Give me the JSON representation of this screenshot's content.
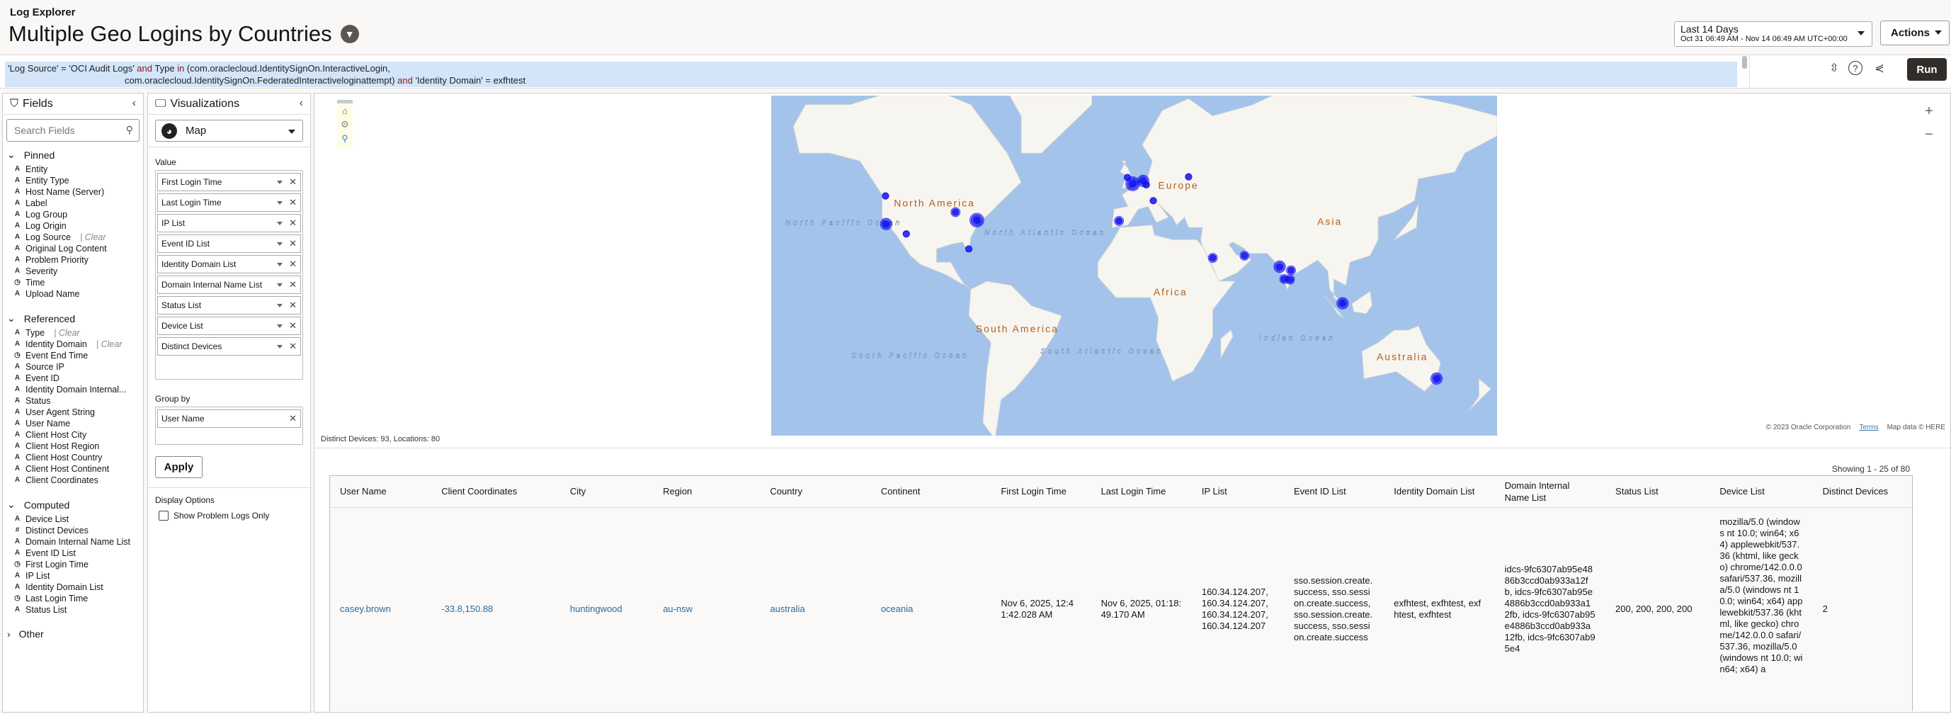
{
  "header": {
    "app_name": "Log Explorer",
    "title": "Multiple Geo Logins by Countries",
    "filter_icon": "filter-icon",
    "time_range": {
      "label": "Last 14 Days",
      "range": "Oct 31 06:49 AM - Nov 14 06:49 AM UTC+00:00"
    },
    "actions_label": "Actions"
  },
  "query": {
    "parts": [
      {
        "t": "'Log Source' = 'OCI Audit Logs' ",
        "kw": false
      },
      {
        "t": "and",
        "kw": true
      },
      {
        "t": " Type ",
        "kw": false
      },
      {
        "t": "in",
        "kw": true
      },
      {
        "t": " (com.oraclecloud.IdentitySignOn.InteractiveLogin,",
        "kw": false
      }
    ],
    "parts2": [
      {
        "t": "com.oraclecloud.IdentitySignOn.FederatedInteractiveloginattempt) ",
        "kw": false
      },
      {
        "t": "and",
        "kw": true
      },
      {
        "t": " 'Identity Domain' = exfhtest",
        "kw": false
      }
    ],
    "run_label": "Run"
  },
  "fields": {
    "title": "Fields",
    "search_placeholder": "Search Fields",
    "clear": "| Clear",
    "groups": [
      {
        "name": "Pinned",
        "items": [
          {
            "t": "A",
            "n": "Entity"
          },
          {
            "t": "A",
            "n": "Entity Type"
          },
          {
            "t": "A",
            "n": "Host Name (Server)"
          },
          {
            "t": "A",
            "n": "Label"
          },
          {
            "t": "A",
            "n": "Log Group"
          },
          {
            "t": "A",
            "n": "Log Origin"
          },
          {
            "t": "A",
            "n": "Log Source",
            "clear": true
          },
          {
            "t": "A",
            "n": "Original Log Content"
          },
          {
            "t": "A",
            "n": "Problem Priority"
          },
          {
            "t": "A",
            "n": "Severity"
          },
          {
            "t": "◷",
            "n": "Time"
          },
          {
            "t": "A",
            "n": "Upload Name"
          }
        ]
      },
      {
        "name": "Referenced",
        "items": [
          {
            "t": "A",
            "n": "Type",
            "clear": true
          },
          {
            "t": "A",
            "n": "Identity Domain",
            "clear": true
          },
          {
            "t": "◷",
            "n": "Event End Time"
          },
          {
            "t": "A",
            "n": "Source IP"
          },
          {
            "t": "A",
            "n": "Event ID"
          },
          {
            "t": "A",
            "n": "Identity Domain Internal..."
          },
          {
            "t": "A",
            "n": "Status"
          },
          {
            "t": "A",
            "n": "User Agent String"
          },
          {
            "t": "A",
            "n": "User Name"
          },
          {
            "t": "A",
            "n": "Client Host City"
          },
          {
            "t": "A",
            "n": "Client Host Region"
          },
          {
            "t": "A",
            "n": "Client Host Country"
          },
          {
            "t": "A",
            "n": "Client Host Continent"
          },
          {
            "t": "A",
            "n": "Client Coordinates"
          }
        ]
      },
      {
        "name": "Computed",
        "items": [
          {
            "t": "A",
            "n": "Device List"
          },
          {
            "t": "#",
            "n": "Distinct Devices"
          },
          {
            "t": "A",
            "n": "Domain Internal Name List"
          },
          {
            "t": "A",
            "n": "Event ID List"
          },
          {
            "t": "◷",
            "n": "First Login Time"
          },
          {
            "t": "A",
            "n": "IP List"
          },
          {
            "t": "A",
            "n": "Identity Domain List"
          },
          {
            "t": "◷",
            "n": "Last Login Time"
          },
          {
            "t": "A",
            "n": "Status List"
          }
        ]
      },
      {
        "name": "Other",
        "collapsed": true,
        "items": []
      }
    ]
  },
  "viz": {
    "title": "Visualizations",
    "type": "Map",
    "value_label": "Value",
    "values": [
      "First Login Time",
      "Last Login Time",
      "IP List",
      "Event ID List",
      "Identity Domain List",
      "Domain Internal Name List",
      "Status List",
      "Device List",
      "Distinct Devices"
    ],
    "group_by_label": "Group by",
    "group_by": [
      "User Name"
    ],
    "apply_label": "Apply",
    "display_options_label": "Display Options",
    "show_problem_logs": {
      "label": "Show Problem Logs Only",
      "checked": false
    }
  },
  "map": {
    "labels": [
      {
        "text": "North America",
        "kind": "continent",
        "lat": 44,
        "lon": -98
      },
      {
        "text": "Europe",
        "kind": "continent",
        "lat": 50,
        "lon": 23
      },
      {
        "text": "Asia",
        "kind": "continent",
        "lat": 37,
        "lon": 98
      },
      {
        "text": "Africa",
        "kind": "continent",
        "lat": 5,
        "lon": 19
      },
      {
        "text": "South America",
        "kind": "continent",
        "lat": -13,
        "lon": -57
      },
      {
        "text": "Australia",
        "kind": "continent",
        "lat": -26,
        "lon": 134
      },
      {
        "text": "North Pacific Ocean",
        "kind": "ocean",
        "lat": 37,
        "lon": -143
      },
      {
        "text": "North Atlantic Ocean",
        "kind": "ocean",
        "lat": 33,
        "lon": -43
      },
      {
        "text": "Indian Ocean",
        "kind": "ocean",
        "lat": -17,
        "lon": 82
      },
      {
        "text": "South Atlantic Ocean",
        "kind": "ocean",
        "lat": -23,
        "lon": -15
      },
      {
        "text": "South Pacific Ocean",
        "kind": "ocean",
        "lat": -25,
        "lon": -110
      }
    ],
    "markers": [
      {
        "lat": 47.6,
        "lon": -122.3,
        "weight": 1
      },
      {
        "lat": 37.4,
        "lon": -122,
        "weight": 3
      },
      {
        "lat": 33.4,
        "lon": -112,
        "weight": 1
      },
      {
        "lat": 41.9,
        "lon": -87.6,
        "weight": 2
      },
      {
        "lat": 38.9,
        "lon": -77,
        "weight": 4
      },
      {
        "lat": 27,
        "lon": -81,
        "weight": 1
      },
      {
        "lat": 53.4,
        "lon": -2.3,
        "weight": 1
      },
      {
        "lat": 51.5,
        "lon": 0.3,
        "weight": 4
      },
      {
        "lat": 52.4,
        "lon": 5.5,
        "weight": 3
      },
      {
        "lat": 51.2,
        "lon": 7
      },
      {
        "lat": 53.6,
        "lon": 28,
        "weight": 1
      },
      {
        "lat": 46,
        "lon": 10.5,
        "weight": 1
      },
      {
        "lat": 38.6,
        "lon": -6.5,
        "weight": 2
      },
      {
        "lat": 23,
        "lon": 40,
        "weight": 2
      },
      {
        "lat": 24,
        "lon": 55.7,
        "weight": 2
      },
      {
        "lat": 18.9,
        "lon": 73.2,
        "weight": 3
      },
      {
        "lat": 17.2,
        "lon": 78.8,
        "weight": 2
      },
      {
        "lat": 13,
        "lon": 75.5,
        "weight": 2
      },
      {
        "lat": 12.8,
        "lon": 78.3,
        "weight": 2
      },
      {
        "lat": 1.2,
        "lon": 104.4,
        "weight": 3
      },
      {
        "lat": -33.9,
        "lon": 151,
        "weight": 3
      }
    ],
    "marker_color": "#1010f0",
    "water_color": "#a3c3eb",
    "land_color": "#f7f5f0",
    "attribution": "© 2023 Oracle Corporation",
    "terms": "Terms",
    "map_data": "Map data © HERE",
    "zoom_in": "+",
    "zoom_out": "−"
  },
  "summary": "Distinct Devices: 93, Locations: 80",
  "table": {
    "showing": "Showing 1 - 25 of 80",
    "columns": [
      "User Name",
      "Client Coordinates",
      "City",
      "Region",
      "Country",
      "Continent",
      "First Login Time",
      "Last Login Time",
      "IP List",
      "Event ID List",
      "Identity Domain List",
      "Domain Internal Name List",
      "Status List",
      "Device List",
      "Distinct Devices"
    ],
    "rows": [
      [
        "casey.brown",
        "-33.8,150.88",
        "huntingwood",
        "au-nsw",
        "australia",
        "oceania",
        "Nov 6, 2025, 12:41:42.028 AM",
        "Nov 6, 2025, 01:18:49.170 AM",
        "160.34.124.207, 160.34.124.207, 160.34.124.207, 160.34.124.207",
        "sso.session.create.success, sso.session.create.success, sso.session.create.success, sso.session.create.success",
        "exfhtest, exfhtest, exfhtest, exfhtest",
        "idcs-9fc6307ab95e4886b3ccd0ab933a12fb, idcs-9fc6307ab95e4886b3ccd0ab933a12fb, idcs-9fc6307ab95e4886b3ccd0ab933a12fb, idcs-9fc6307ab95e4",
        "200, 200, 200, 200",
        "mozilla/5.0 (windows nt 10.0; win64; x64) applewebkit/537.36 (khtml, like gecko) chrome/142.0.0.0 safari/537.36, mozilla/5.0 (windows nt 10.0; win64; x64) applewebkit/537.36 (khtml, like gecko) chrome/142.0.0.0 safari/537.36, mozilla/5.0 (windows nt 10.0; win64; x64) a",
        "2"
      ]
    ]
  }
}
